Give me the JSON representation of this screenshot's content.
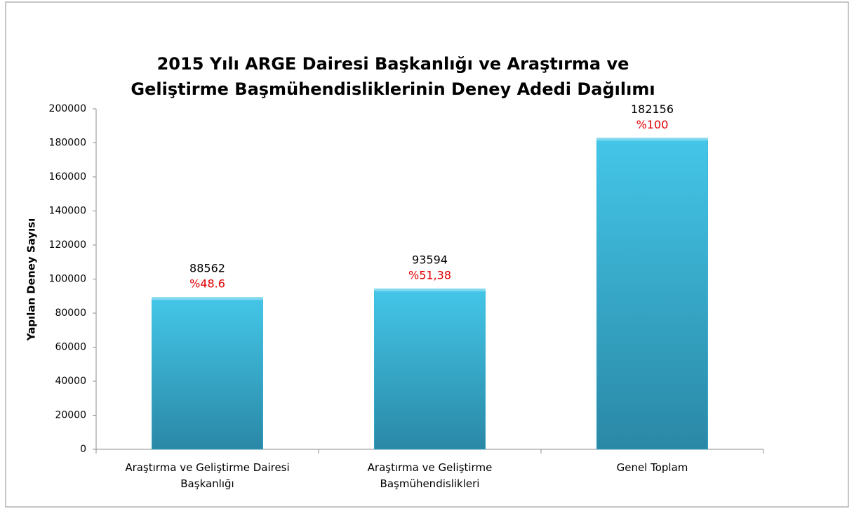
{
  "chart_data": {
    "type": "bar",
    "title": "2015 Yılı ARGE Dairesi Başkanlığı ve Araştırma ve Geliştirme Başmühendisliklerinin Deney Adedi Dağılımı",
    "y_label": "Yapılan Deney Sayısı",
    "categories": [
      "Araştırma ve Geliştirme Dairesi Başkanlığı",
      "Araştırma ve Geliştirme Başmühendislikleri",
      "Genel Toplam"
    ],
    "values": [
      88562,
      93594,
      182156
    ],
    "percent_labels": [
      "%48.6",
      "%51,38",
      "%100"
    ],
    "color": "#38b6d8",
    "ylim": [
      0,
      200000
    ],
    "yticks": [
      0,
      20000,
      40000,
      60000,
      80000,
      100000,
      120000,
      140000,
      160000,
      180000,
      200000
    ],
    "grid": false
  }
}
